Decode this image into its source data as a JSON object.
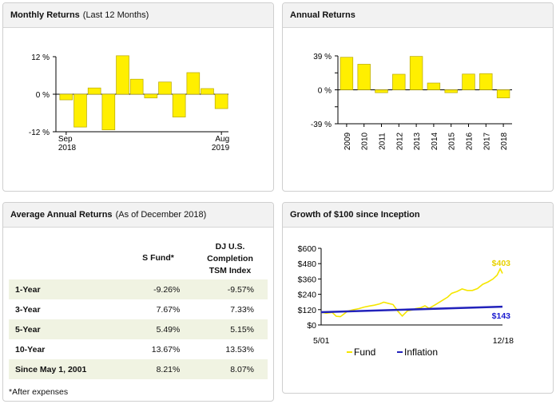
{
  "colors": {
    "bar": "#ffef00",
    "bar_stroke": "#b8a800",
    "fund_line": "#f5e600",
    "fund_label": "#e8d200",
    "inflation_line": "#2222bb",
    "inflation_label": "#1a1ad0"
  },
  "panels": {
    "monthly": {
      "title": "Monthly Returns",
      "subtitle": "(Last 12 Months)"
    },
    "annual": {
      "title": "Annual Returns"
    },
    "average": {
      "title": "Average Annual Returns",
      "subtitle": "(As of December 2018)"
    },
    "growth": {
      "title": "Growth of $100 since Inception"
    }
  },
  "chart_data": [
    {
      "type": "bar",
      "title": "Monthly Returns (Last 12 Months)",
      "x_tick_labels": [
        {
          "line1": "Sep",
          "line2": "2018"
        },
        {
          "line1": "Aug",
          "line2": "2019"
        }
      ],
      "y_tick_labels": [
        "12 %",
        "0 %",
        "-12 %"
      ],
      "y_ticks": [
        12,
        0,
        -12
      ],
      "ylim": [
        -12,
        12
      ],
      "values": [
        -1.8,
        -10.5,
        2.0,
        -11.4,
        12.3,
        4.8,
        -1.2,
        3.9,
        -7.3,
        6.9,
        1.8,
        -4.6
      ]
    },
    {
      "type": "bar",
      "title": "Annual Returns",
      "categories": [
        "2009",
        "2010",
        "2011",
        "2012",
        "2013",
        "2014",
        "2015",
        "2016",
        "2017",
        "2018"
      ],
      "y_tick_labels": [
        "39 %",
        "0 %",
        "-39 %"
      ],
      "y_ticks": [
        39,
        0,
        -39
      ],
      "ylim": [
        -39,
        39
      ],
      "values": [
        37.4,
        29.4,
        -3.3,
        17.9,
        38.4,
        7.8,
        -3.3,
        18.1,
        18.6,
        -9.3
      ]
    },
    {
      "type": "table",
      "title": "Average Annual Returns (As of December 2018)",
      "columns": [
        "S Fund*",
        "DJ U.S. Completion TSM Index"
      ],
      "rows": [
        {
          "label": "1-Year",
          "values": [
            "-9.26%",
            "-9.57%"
          ]
        },
        {
          "label": "3-Year",
          "values": [
            "7.67%",
            "7.33%"
          ]
        },
        {
          "label": "5-Year",
          "values": [
            "5.49%",
            "5.15%"
          ]
        },
        {
          "label": "10-Year",
          "values": [
            "13.67%",
            "13.53%"
          ]
        },
        {
          "label": "Since May 1, 2001",
          "values": [
            "8.21%",
            "8.07%"
          ]
        }
      ],
      "footnote": "*After expenses"
    },
    {
      "type": "line",
      "title": "Growth of $100 since Inception",
      "x_tick_labels": [
        "5/01",
        "12/18"
      ],
      "xlim": [
        2001.33,
        2018.92
      ],
      "y_tick_labels": [
        "$600",
        "$480",
        "$360",
        "$240",
        "$120",
        "$0"
      ],
      "y_ticks": [
        600,
        480,
        360,
        240,
        120,
        0
      ],
      "ylim": [
        0,
        600
      ],
      "series": [
        {
          "name": "Fund",
          "end_label": "$403",
          "x": [
            2001.33,
            2001.8,
            2002.4,
            2002.8,
            2003.2,
            2003.9,
            2004.5,
            2005.0,
            2005.5,
            2006.0,
            2006.5,
            2007.0,
            2007.4,
            2007.8,
            2008.3,
            2008.8,
            2009.2,
            2009.7,
            2010.2,
            2010.5,
            2011.0,
            2011.4,
            2011.8,
            2012.4,
            2013.0,
            2013.6,
            2014.0,
            2014.5,
            2015.0,
            2015.5,
            2016.0,
            2016.5,
            2017.0,
            2017.5,
            2018.0,
            2018.4,
            2018.7,
            2018.92
          ],
          "y": [
            100,
            92,
            98,
            68,
            65,
            108,
            120,
            128,
            140,
            148,
            155,
            165,
            178,
            170,
            160,
            105,
            70,
            110,
            118,
            128,
            135,
            150,
            130,
            158,
            188,
            218,
            248,
            262,
            282,
            270,
            270,
            285,
            318,
            336,
            360,
            390,
            440,
            403
          ]
        },
        {
          "name": "Inflation",
          "end_label": "$143",
          "x": [
            2001.33,
            2018.92
          ],
          "y": [
            100,
            143
          ]
        }
      ]
    }
  ]
}
